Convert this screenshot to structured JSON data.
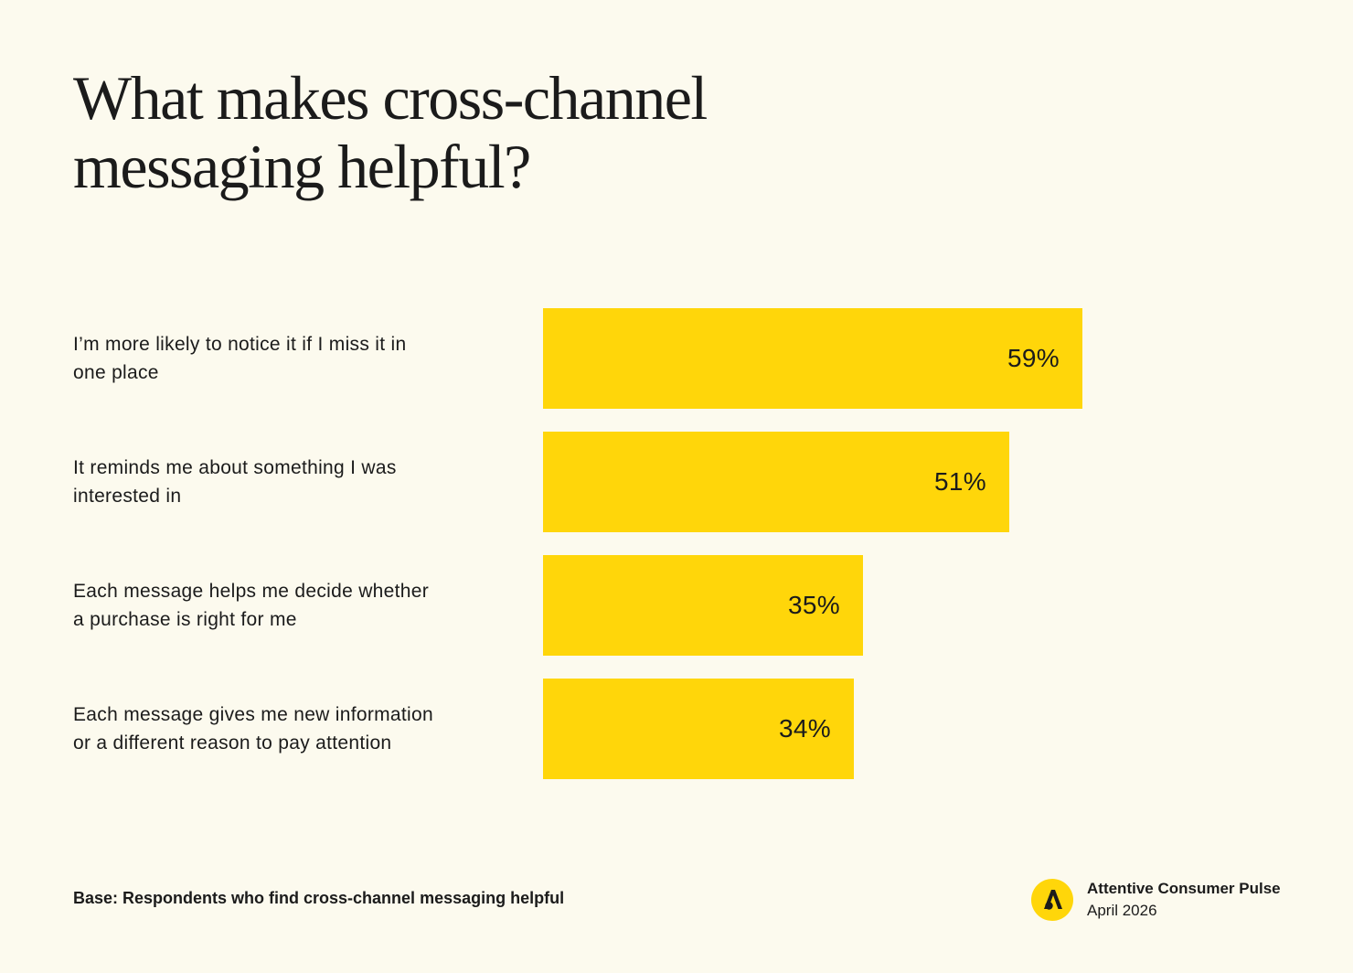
{
  "title_lines": [
    "What makes cross-channel",
    "messaging helpful?"
  ],
  "footer": {
    "base_note": "Base: Respondents who find cross-channel messaging helpful",
    "brand_name": "Attentive Consumer Pulse",
    "brand_date": "April 2026",
    "logo_icon": "attentive-logo-icon"
  },
  "colors": {
    "background": "#FCFAEE",
    "bar": "#FFD60A",
    "text": "#1b1b1b"
  },
  "chart_data": {
    "type": "bar",
    "orientation": "horizontal",
    "title": "What makes cross-channel messaging helpful?",
    "xlabel": "",
    "ylabel": "",
    "unit": "%",
    "xlim": [
      0,
      100
    ],
    "grid": false,
    "legend": "none",
    "categories": [
      [
        "I’m more likely to notice it if I miss it in",
        "one place"
      ],
      [
        "It reminds me about something I was",
        "interested in"
      ],
      [
        "Each message helps me decide whether",
        "a purchase is right for me"
      ],
      [
        "Each message gives me new information",
        "or a different reason to pay attention"
      ]
    ],
    "values": [
      59,
      51,
      35,
      34
    ],
    "value_labels": [
      "59%",
      "51%",
      "35%",
      "34%"
    ]
  }
}
